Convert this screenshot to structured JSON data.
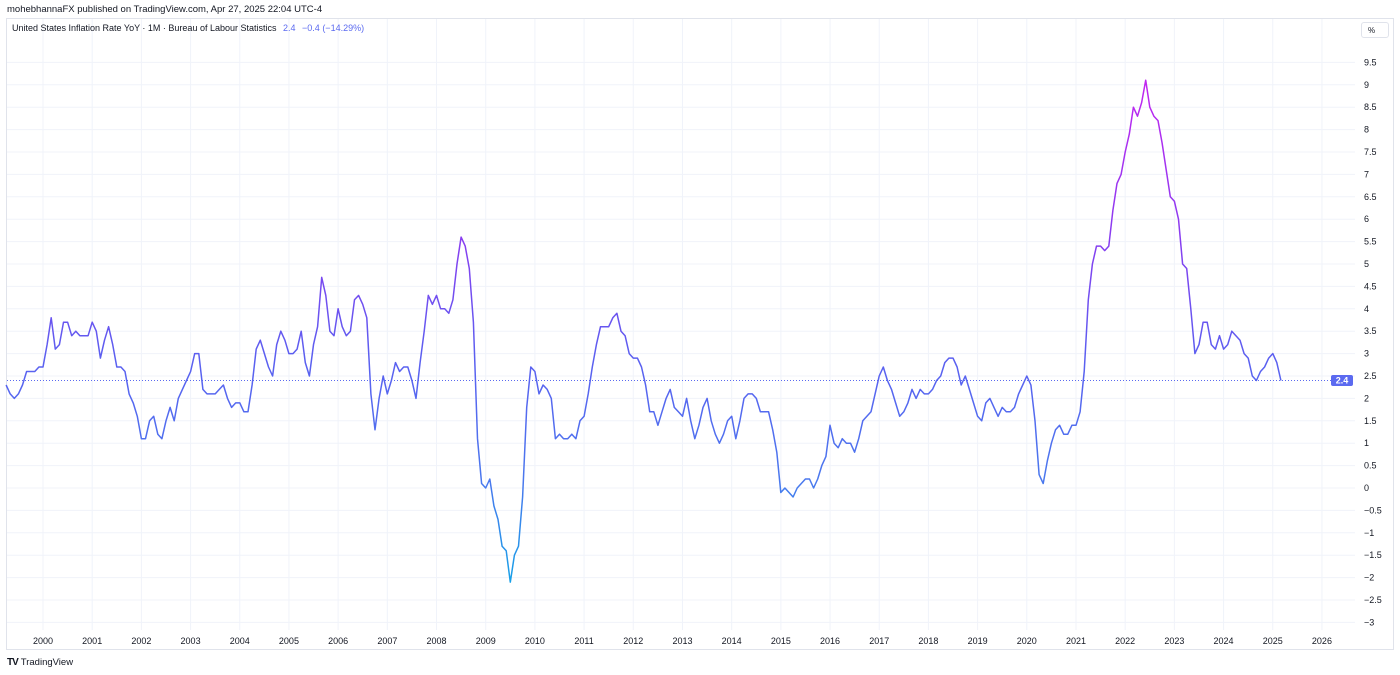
{
  "publisher_line": "mohebhannaFX published on TradingView.com, Apr 27, 2025 22:04 UTC-4",
  "legend": {
    "title": "United States Inflation Rate YoY · 1M · Bureau of Labour Statistics",
    "last_value": "2.4",
    "change": "−0.4 (−14.29%)"
  },
  "unit_button": "%",
  "last_value_badge": "2.4",
  "brand": "TradingView",
  "colors": {
    "line_high": "#c026f0",
    "line_mid": "#5b5ff0",
    "line_low": "#18a0e8",
    "badge": "#5b6af0"
  },
  "chart_data": {
    "type": "line",
    "title": "United States Inflation Rate YoY",
    "ylabel": "%",
    "ylim": [
      -3,
      9.5
    ],
    "xlim": [
      1999.25,
      2026
    ],
    "grid": true,
    "y_ticks": [
      "9.5",
      "9",
      "8.5",
      "8",
      "7.5",
      "7",
      "6.5",
      "6",
      "5.5",
      "5",
      "4.5",
      "4",
      "3.5",
      "3",
      "2.5",
      "2",
      "1.5",
      "1",
      "0.5",
      "0",
      "−0.5",
      "−1",
      "−1.5",
      "−2",
      "−2.5",
      "−3"
    ],
    "x_ticks": [
      "2000",
      "2001",
      "2002",
      "2003",
      "2004",
      "2005",
      "2006",
      "2007",
      "2008",
      "2009",
      "2010",
      "2011",
      "2012",
      "2013",
      "2014",
      "2015",
      "2016",
      "2017",
      "2018",
      "2019",
      "2020",
      "2021",
      "2022",
      "2023",
      "2024",
      "2025",
      "2026"
    ],
    "start": "1999-04",
    "frequency": "monthly",
    "values": [
      2.3,
      2.1,
      2.0,
      2.1,
      2.3,
      2.6,
      2.6,
      2.6,
      2.7,
      2.7,
      3.2,
      3.8,
      3.1,
      3.2,
      3.7,
      3.7,
      3.4,
      3.5,
      3.4,
      3.4,
      3.4,
      3.7,
      3.5,
      2.9,
      3.3,
      3.6,
      3.2,
      2.7,
      2.7,
      2.6,
      2.1,
      1.9,
      1.6,
      1.1,
      1.1,
      1.5,
      1.6,
      1.2,
      1.1,
      1.5,
      1.8,
      1.5,
      2.0,
      2.2,
      2.4,
      2.6,
      3.0,
      3.0,
      2.2,
      2.1,
      2.1,
      2.1,
      2.2,
      2.3,
      2.0,
      1.8,
      1.9,
      1.9,
      1.7,
      1.7,
      2.3,
      3.1,
      3.3,
      3.0,
      2.7,
      2.5,
      3.2,
      3.5,
      3.3,
      3.0,
      3.0,
      3.1,
      3.5,
      2.8,
      2.5,
      3.2,
      3.6,
      4.7,
      4.3,
      3.5,
      3.4,
      4.0,
      3.6,
      3.4,
      3.5,
      4.2,
      4.3,
      4.1,
      3.8,
      2.1,
      1.3,
      2.0,
      2.5,
      2.1,
      2.4,
      2.8,
      2.6,
      2.7,
      2.7,
      2.4,
      2.0,
      2.8,
      3.5,
      4.3,
      4.1,
      4.3,
      4.0,
      4.0,
      3.9,
      4.2,
      5.0,
      5.6,
      5.4,
      4.9,
      3.7,
      1.1,
      0.1,
      0.0,
      0.2,
      -0.4,
      -0.7,
      -1.3,
      -1.4,
      -2.1,
      -1.5,
      -1.3,
      -0.2,
      1.8,
      2.7,
      2.6,
      2.1,
      2.3,
      2.2,
      2.0,
      1.1,
      1.2,
      1.1,
      1.1,
      1.2,
      1.1,
      1.5,
      1.6,
      2.1,
      2.7,
      3.2,
      3.6,
      3.6,
      3.6,
      3.8,
      3.9,
      3.5,
      3.4,
      3.0,
      2.9,
      2.9,
      2.7,
      2.3,
      1.7,
      1.7,
      1.4,
      1.7,
      2.0,
      2.2,
      1.8,
      1.7,
      1.6,
      2.0,
      1.5,
      1.1,
      1.4,
      1.8,
      2.0,
      1.5,
      1.2,
      1.0,
      1.2,
      1.5,
      1.6,
      1.1,
      1.5,
      2.0,
      2.1,
      2.1,
      2.0,
      1.7,
      1.7,
      1.7,
      1.3,
      0.8,
      -0.1,
      0.0,
      -0.1,
      -0.2,
      0.0,
      0.1,
      0.2,
      0.2,
      0.0,
      0.2,
      0.5,
      0.7,
      1.4,
      1.0,
      0.9,
      1.1,
      1.0,
      1.0,
      0.8,
      1.1,
      1.5,
      1.6,
      1.7,
      2.1,
      2.5,
      2.7,
      2.4,
      2.2,
      1.9,
      1.6,
      1.7,
      1.9,
      2.2,
      2.0,
      2.2,
      2.1,
      2.1,
      2.2,
      2.4,
      2.5,
      2.8,
      2.9,
      2.9,
      2.7,
      2.3,
      2.5,
      2.2,
      1.9,
      1.6,
      1.5,
      1.9,
      2.0,
      1.8,
      1.6,
      1.8,
      1.7,
      1.7,
      1.8,
      2.1,
      2.3,
      2.5,
      2.3,
      1.5,
      0.3,
      0.1,
      0.6,
      1.0,
      1.3,
      1.4,
      1.2,
      1.2,
      1.4,
      1.4,
      1.7,
      2.6,
      4.2,
      5.0,
      5.4,
      5.4,
      5.3,
      5.4,
      6.2,
      6.8,
      7.0,
      7.5,
      7.9,
      8.5,
      8.3,
      8.6,
      9.1,
      8.5,
      8.3,
      8.2,
      7.7,
      7.1,
      6.5,
      6.4,
      6.0,
      5.0,
      4.9,
      4.0,
      3.0,
      3.2,
      3.7,
      3.7,
      3.2,
      3.1,
      3.4,
      3.1,
      3.2,
      3.5,
      3.4,
      3.3,
      3.0,
      2.9,
      2.5,
      2.4,
      2.6,
      2.7,
      2.9,
      3.0,
      2.8,
      2.4
    ]
  }
}
